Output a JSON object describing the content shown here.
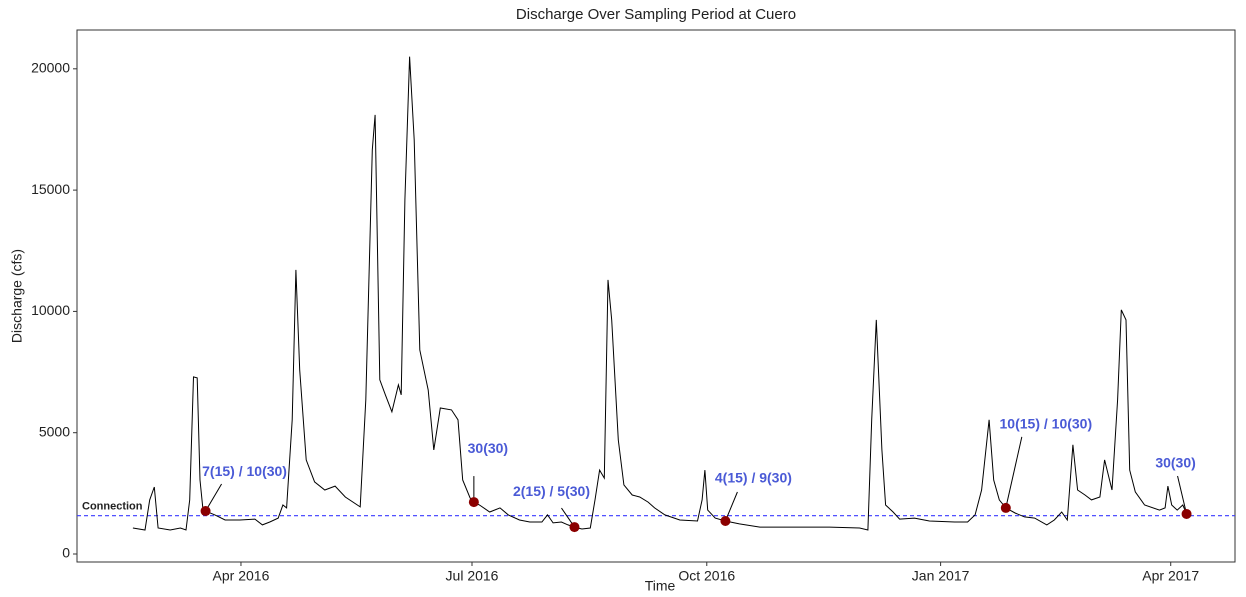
{
  "chart_data": {
    "type": "line",
    "title": "Discharge Over Sampling Period at Cuero",
    "x_label": "Time",
    "y_label": "Discharge (cfs)",
    "xlim": [
      2016.073,
      2017.316
    ],
    "xticks": [
      {
        "value": 2016.249,
        "label": "Apr 2016"
      },
      {
        "value": 2016.497,
        "label": "Jul 2016"
      },
      {
        "value": 2016.749,
        "label": "Oct 2016"
      },
      {
        "value": 2017.0,
        "label": "Jan 2017"
      },
      {
        "value": 2017.247,
        "label": "Apr 2017"
      }
    ],
    "ylim": [
      -330,
      21600
    ],
    "yticks": [
      0,
      5000,
      10000,
      15000,
      20000
    ],
    "grid": false,
    "series": [
      {
        "color": "#000000",
        "x": [
          2016.133,
          2016.146,
          2016.151,
          2016.156,
          2016.16,
          2016.173,
          2016.184,
          2016.19,
          2016.194,
          2016.198,
          2016.202,
          2016.205,
          2016.208,
          2016.211,
          2016.221,
          2016.232,
          2016.248,
          2016.264,
          2016.272,
          2016.28,
          2016.289,
          2016.294,
          2016.298,
          2016.304,
          2016.308,
          2016.312,
          2016.319,
          2016.328,
          2016.339,
          2016.35,
          2016.361,
          2016.377,
          2016.383,
          2016.39,
          2016.393,
          2016.398,
          2016.404,
          2016.411,
          2016.418,
          2016.421,
          2016.425,
          2016.43,
          2016.435,
          2016.441,
          2016.45,
          2016.456,
          2016.463,
          2016.475,
          2016.482,
          2016.487,
          2016.495,
          2016.499,
          2016.505,
          2016.516,
          2016.527,
          2016.536,
          2016.548,
          2016.559,
          2016.572,
          2016.578,
          2016.584,
          2016.593,
          2016.6,
          2016.607,
          2016.615,
          2016.624,
          2016.629,
          2016.634,
          2016.639,
          2016.643,
          2016.647,
          2016.654,
          2016.66,
          2016.669,
          2016.677,
          2016.686,
          2016.693,
          2016.704,
          2016.72,
          2016.739,
          2016.744,
          2016.747,
          2016.75,
          2016.758,
          2016.769,
          2016.784,
          2016.806,
          2016.849,
          2016.881,
          2016.913,
          2016.922,
          2016.926,
          2016.931,
          2016.937,
          2016.941,
          2016.949,
          2016.956,
          2016.972,
          2016.988,
          2017.015,
          2017.029,
          2017.037,
          2017.044,
          2017.052,
          2017.057,
          2017.063,
          2017.07,
          2017.08,
          2017.09,
          2017.101,
          2017.114,
          2017.122,
          2017.13,
          2017.136,
          2017.142,
          2017.147,
          2017.155,
          2017.162,
          2017.171,
          2017.176,
          2017.184,
          2017.19,
          2017.194,
          2017.199,
          2017.203,
          2017.209,
          2017.219,
          2017.235,
          2017.241,
          2017.244,
          2017.248,
          2017.254,
          2017.26,
          2017.264,
          2017.269
        ],
        "values": [
          1070,
          990,
          2230,
          2760,
          1070,
          990,
          1070,
          990,
          2230,
          7300,
          7260,
          3050,
          1900,
          1770,
          1610,
          1400,
          1400,
          1440,
          1200,
          1320,
          1480,
          2020,
          1900,
          5530,
          11710,
          7590,
          3880,
          2970,
          2640,
          2800,
          2350,
          1940,
          6350,
          16660,
          18100,
          7180,
          6560,
          5860,
          6970,
          6560,
          14600,
          20500,
          17070,
          8410,
          6760,
          4290,
          6020,
          5940,
          5530,
          3050,
          2310,
          2140,
          2020,
          1730,
          1900,
          1610,
          1400,
          1320,
          1320,
          1610,
          1280,
          1320,
          1200,
          1110,
          1030,
          1070,
          2230,
          3460,
          3130,
          11300,
          9650,
          4700,
          2850,
          2430,
          2350,
          2140,
          1900,
          1610,
          1400,
          1360,
          2230,
          3460,
          1810,
          1480,
          1360,
          1240,
          1110,
          1110,
          1110,
          1070,
          990,
          5530,
          9650,
          4290,
          2020,
          1730,
          1440,
          1480,
          1360,
          1320,
          1320,
          1610,
          2640,
          5530,
          3050,
          2230,
          1900,
          1690,
          1530,
          1480,
          1200,
          1400,
          1730,
          1400,
          4500,
          2640,
          2430,
          2230,
          2350,
          3880,
          2640,
          6350,
          10060,
          9650,
          3460,
          2560,
          2020,
          1810,
          1900,
          2800,
          2020,
          1810,
          2020,
          1650,
          1570
        ]
      }
    ],
    "points": {
      "color": "#8b0000",
      "label_color": "#4a5ad6",
      "x": [
        2016.211,
        2016.499,
        2016.607,
        2016.769,
        2017.07,
        2017.264
      ],
      "values": [
        1770,
        2140,
        1110,
        1360,
        1900,
        1650
      ],
      "labels": [
        "7(15) / 10(30)",
        "30(30)",
        "2(15) / 5(30)",
        "4(15) / 9(30)",
        "10(15) / 10(30)",
        "30(30)"
      ]
    },
    "hline": {
      "value": 1580,
      "label": "Connection",
      "color": "#3a3aff"
    }
  }
}
